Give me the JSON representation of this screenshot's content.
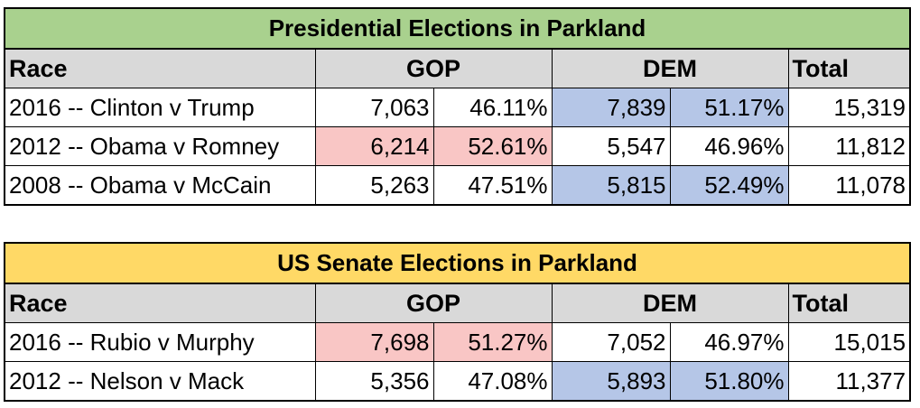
{
  "colors": {
    "presidential_title_bg": "#a9d18e",
    "senate_title_bg": "#ffd966",
    "header_bg": "#d9d9d9",
    "gop_win": "#f9c6c5",
    "dem_win": "#b5c6e7"
  },
  "presidential": {
    "title": "Presidential Elections in Parkland",
    "headers": {
      "race": "Race",
      "gop": "GOP",
      "dem": "DEM",
      "total": "Total"
    },
    "rows": [
      {
        "race": "2016 -- Clinton v Trump",
        "gop_votes": "7,063",
        "gop_pct": "46.11%",
        "dem_votes": "7,839",
        "dem_pct": "51.17%",
        "total": "15,319",
        "winner": "dem"
      },
      {
        "race": "2012 -- Obama v Romney",
        "gop_votes": "6,214",
        "gop_pct": "52.61%",
        "dem_votes": "5,547",
        "dem_pct": "46.96%",
        "total": "11,812",
        "winner": "gop"
      },
      {
        "race": "2008 -- Obama v McCain",
        "gop_votes": "5,263",
        "gop_pct": "47.51%",
        "dem_votes": "5,815",
        "dem_pct": "52.49%",
        "total": "11,078",
        "winner": "dem"
      }
    ]
  },
  "senate": {
    "title": "US Senate Elections in Parkland",
    "headers": {
      "race": "Race",
      "gop": "GOP",
      "dem": "DEM",
      "total": "Total"
    },
    "rows": [
      {
        "race": "2016 -- Rubio v Murphy",
        "gop_votes": "7,698",
        "gop_pct": "51.27%",
        "dem_votes": "7,052",
        "dem_pct": "46.97%",
        "total": "15,015",
        "winner": "gop"
      },
      {
        "race": "2012 -- Nelson v Mack",
        "gop_votes": "5,356",
        "gop_pct": "47.08%",
        "dem_votes": "5,893",
        "dem_pct": "51.80%",
        "total": "11,377",
        "winner": "dem"
      }
    ]
  }
}
